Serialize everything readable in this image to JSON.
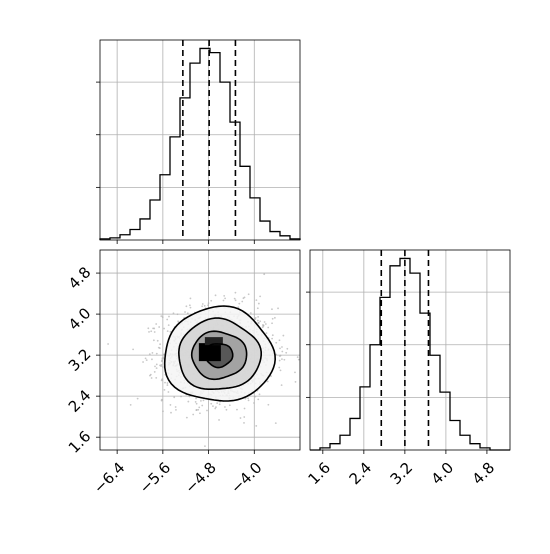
{
  "chart_data": {
    "type": "corner_plot",
    "parameters": [
      "",
      ""
    ],
    "axes": {
      "p1": {
        "range": [
          -6.7,
          -3.2
        ],
        "ticks": [
          -6.4,
          -5.6,
          -4.8,
          -4.0
        ],
        "tick_labels": [
          "−6.4",
          "−5.6",
          "−4.8",
          "−4.0"
        ]
      },
      "p2": {
        "range": [
          1.35,
          5.25
        ],
        "ticks": [
          1.6,
          2.4,
          3.2,
          4.0,
          4.8
        ],
        "tick_labels": [
          "1.6",
          "2.4",
          "3.2",
          "4.0",
          "4.8"
        ]
      }
    },
    "grid": true,
    "panels": [
      {
        "id": "hist-p1",
        "type": "histogram",
        "parameter": "p1",
        "bin_edges": [
          -6.7,
          -6.525,
          -6.35,
          -6.175,
          -6.0,
          -5.825,
          -5.65,
          -5.475,
          -5.3,
          -5.125,
          -4.95,
          -4.775,
          -4.6,
          -4.425,
          -4.25,
          -4.075,
          -3.9,
          -3.725,
          -3.55,
          -3.375,
          -3.2
        ],
        "counts": [
          1,
          2,
          5,
          10,
          20,
          38,
          62,
          98,
          135,
          168,
          182,
          178,
          150,
          112,
          70,
          40,
          18,
          8,
          4,
          1
        ],
        "quantiles": [
          -5.25,
          -4.79,
          -4.33
        ],
        "count_max": 190
      },
      {
        "id": "hist-p2",
        "type": "histogram",
        "parameter": "p2",
        "bin_edges": [
          1.35,
          1.545,
          1.74,
          1.935,
          2.13,
          2.325,
          2.52,
          2.715,
          2.91,
          3.105,
          3.3,
          3.495,
          3.69,
          3.885,
          4.08,
          4.275,
          4.47,
          4.665,
          4.86,
          5.055,
          5.25
        ],
        "counts": [
          0,
          2,
          6,
          14,
          30,
          60,
          100,
          145,
          175,
          182,
          168,
          130,
          90,
          55,
          28,
          14,
          6,
          2,
          0,
          0
        ],
        "quantiles": [
          2.74,
          3.2,
          3.66
        ],
        "count_max": 190
      },
      {
        "id": "density-p1-p2",
        "type": "2d_density",
        "x": "p1",
        "y": "p2",
        "center": [
          -4.62,
          3.2
        ],
        "sigma": [
          0.48,
          0.46
        ],
        "n_scatter": 1600,
        "contour_levels_sigma": [
          0.5,
          1.0,
          1.5,
          2.0
        ],
        "colors": {
          "points": "#b0b0b0",
          "contour": "#000000",
          "fill_dark": "#000000",
          "fill_light": "#ffffff"
        }
      }
    ]
  }
}
